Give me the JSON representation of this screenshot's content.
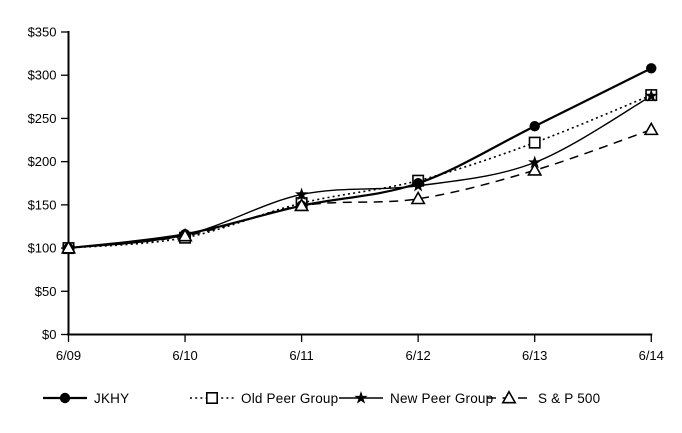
{
  "chart_data": {
    "type": "line",
    "categories": [
      "6/09",
      "6/10",
      "6/11",
      "6/12",
      "6/13",
      "6/14"
    ],
    "series": [
      {
        "name": "JKHY",
        "values": [
          100,
          116,
          149,
          175,
          241,
          308
        ],
        "line_style": "solid",
        "marker": "filled-circle"
      },
      {
        "name": "Old Peer Group",
        "values": [
          100,
          112,
          152,
          178,
          222,
          277
        ],
        "line_style": "dotted",
        "marker": "open-square"
      },
      {
        "name": "New Peer Group",
        "values": [
          100,
          115,
          162,
          172,
          199,
          276
        ],
        "line_style": "solid-thin",
        "marker": "filled-star"
      },
      {
        "name": "S & P 500",
        "values": [
          100,
          114,
          149,
          157,
          190,
          237
        ],
        "line_style": "dashed",
        "marker": "open-triangle"
      }
    ],
    "ylim": [
      0,
      350
    ],
    "ytick_step": 50,
    "ytick_labels": [
      "$0",
      "$50",
      "$100",
      "$150",
      "$200",
      "$250",
      "$300",
      "$350"
    ],
    "grid": false,
    "legend_position": "bottom",
    "axis_color": "#000000",
    "background": "#ffffff"
  }
}
